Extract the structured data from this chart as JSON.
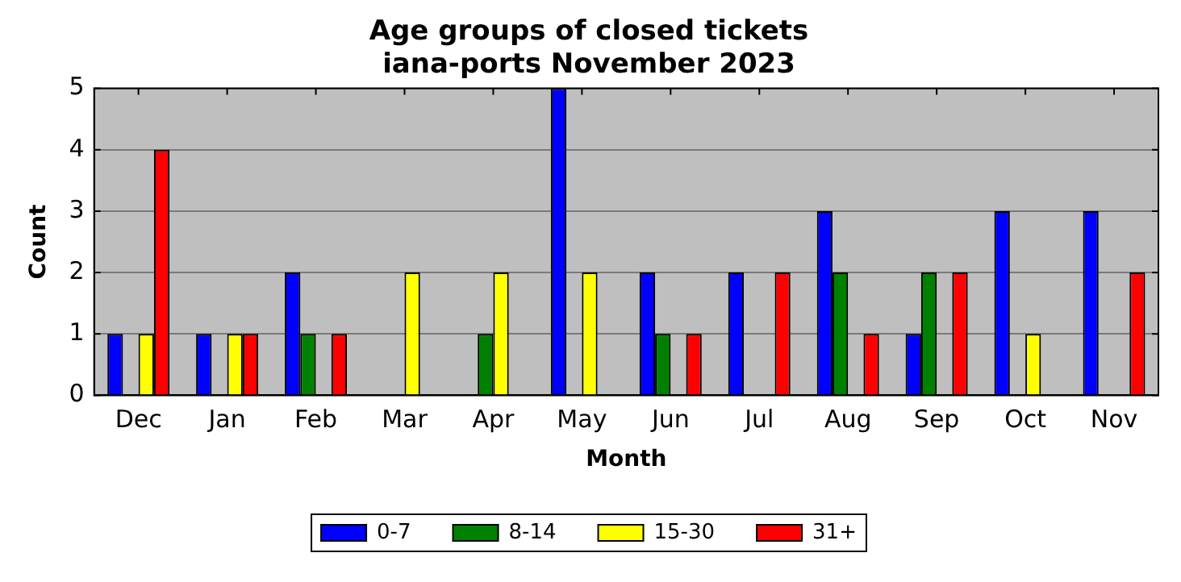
{
  "chart_data": {
    "type": "bar",
    "title": "Age groups of closed tickets",
    "subtitle": "iana-ports November 2023",
    "xlabel": "Month",
    "ylabel": "Count",
    "categories": [
      "Dec",
      "Jan",
      "Feb",
      "Mar",
      "Apr",
      "May",
      "Jun",
      "Jul",
      "Aug",
      "Sep",
      "Oct",
      "Nov"
    ],
    "series": [
      {
        "name": "0-7",
        "color": "#0000ff",
        "values": [
          1,
          1,
          2,
          0,
          0,
          5,
          2,
          2,
          3,
          1,
          3,
          3
        ]
      },
      {
        "name": "8-14",
        "color": "#008000",
        "values": [
          0,
          0,
          1,
          0,
          1,
          0,
          1,
          0,
          2,
          2,
          0,
          0
        ]
      },
      {
        "name": "15-30",
        "color": "#ffff00",
        "values": [
          1,
          1,
          0,
          2,
          2,
          2,
          0,
          0,
          0,
          0,
          1,
          0
        ]
      },
      {
        "name": "31+",
        "color": "#ff0000",
        "values": [
          4,
          1,
          1,
          0,
          0,
          0,
          1,
          2,
          1,
          2,
          0,
          2
        ]
      }
    ],
    "ylim": [
      0,
      5
    ],
    "yticks": [
      0,
      1,
      2,
      3,
      4,
      5
    ],
    "grid": "y",
    "legend": "bottom"
  }
}
